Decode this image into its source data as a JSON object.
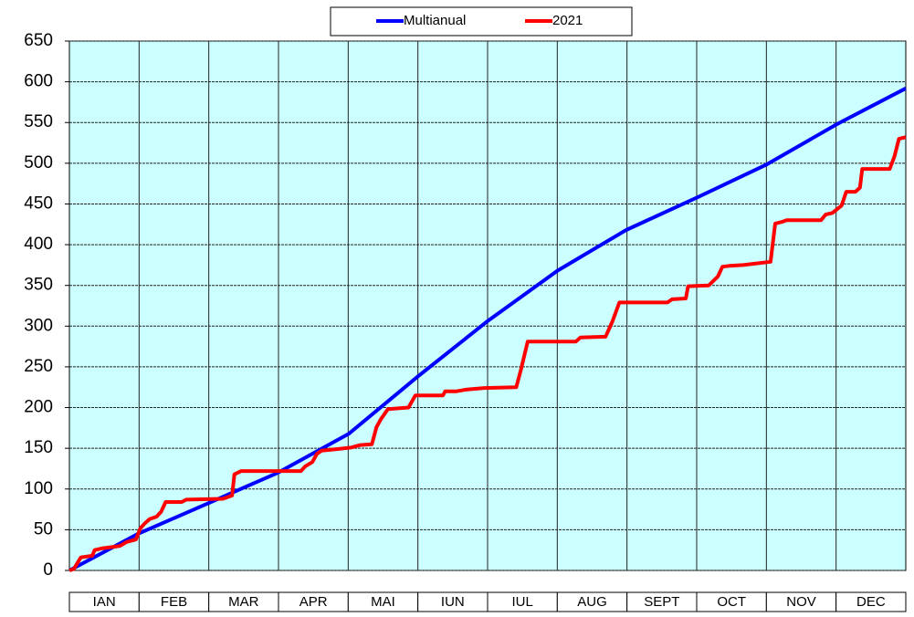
{
  "chart_data": {
    "type": "line",
    "categories": [
      "IAN",
      "FEB",
      "MAR",
      "APR",
      "MAI",
      "IUN",
      "IUL",
      "AUG",
      "SEPT",
      "OCT",
      "NOV",
      "DEC"
    ],
    "xlim": [
      0,
      365
    ],
    "ylim": [
      0,
      650
    ],
    "yticks": [
      0,
      50,
      100,
      150,
      200,
      250,
      300,
      350,
      400,
      450,
      500,
      550,
      600,
      650
    ],
    "grid": true,
    "legend": "top",
    "series": [
      {
        "name": "Multianual",
        "color": "#0000ff",
        "x": [
          0,
          30,
          61,
          91,
          122,
          152,
          182,
          213,
          243,
          274,
          304,
          335,
          365
        ],
        "values": [
          0,
          45,
          83,
          120,
          168,
          238,
          305,
          368,
          418,
          458,
          498,
          548,
          592
        ]
      },
      {
        "name": "2021",
        "color": "#ff0000",
        "x": [
          0,
          2,
          5,
          10,
          11,
          14,
          22,
          25,
          29,
          31,
          33,
          35,
          38,
          40,
          42,
          49,
          51,
          67,
          71,
          72,
          75,
          101,
          103,
          106,
          108,
          110,
          117,
          123,
          127,
          132,
          134,
          136,
          139,
          148,
          151,
          163,
          164,
          169,
          173,
          181,
          195,
          197,
          200,
          221,
          223,
          234,
          237,
          240,
          261,
          263,
          269,
          270,
          279,
          283,
          285,
          288,
          294,
          306,
          308,
          311,
          313,
          328,
          330,
          333,
          337,
          339,
          343,
          345,
          346,
          358,
          360,
          362,
          365
        ],
        "values": [
          0,
          2,
          16,
          18,
          25,
          27,
          30,
          35,
          38,
          52,
          58,
          63,
          66,
          72,
          84,
          84,
          87,
          88,
          92,
          118,
          122,
          122,
          128,
          133,
          143,
          147,
          149,
          151,
          154,
          155,
          176,
          186,
          198,
          200,
          215,
          215,
          220,
          220,
          222,
          224,
          225,
          246,
          281,
          281,
          286,
          287,
          306,
          329,
          329,
          333,
          334,
          349,
          350,
          361,
          373,
          374,
          375,
          379,
          426,
          428,
          430,
          430,
          437,
          439,
          448,
          465,
          465,
          470,
          493,
          493,
          508,
          530,
          532
        ]
      }
    ]
  }
}
